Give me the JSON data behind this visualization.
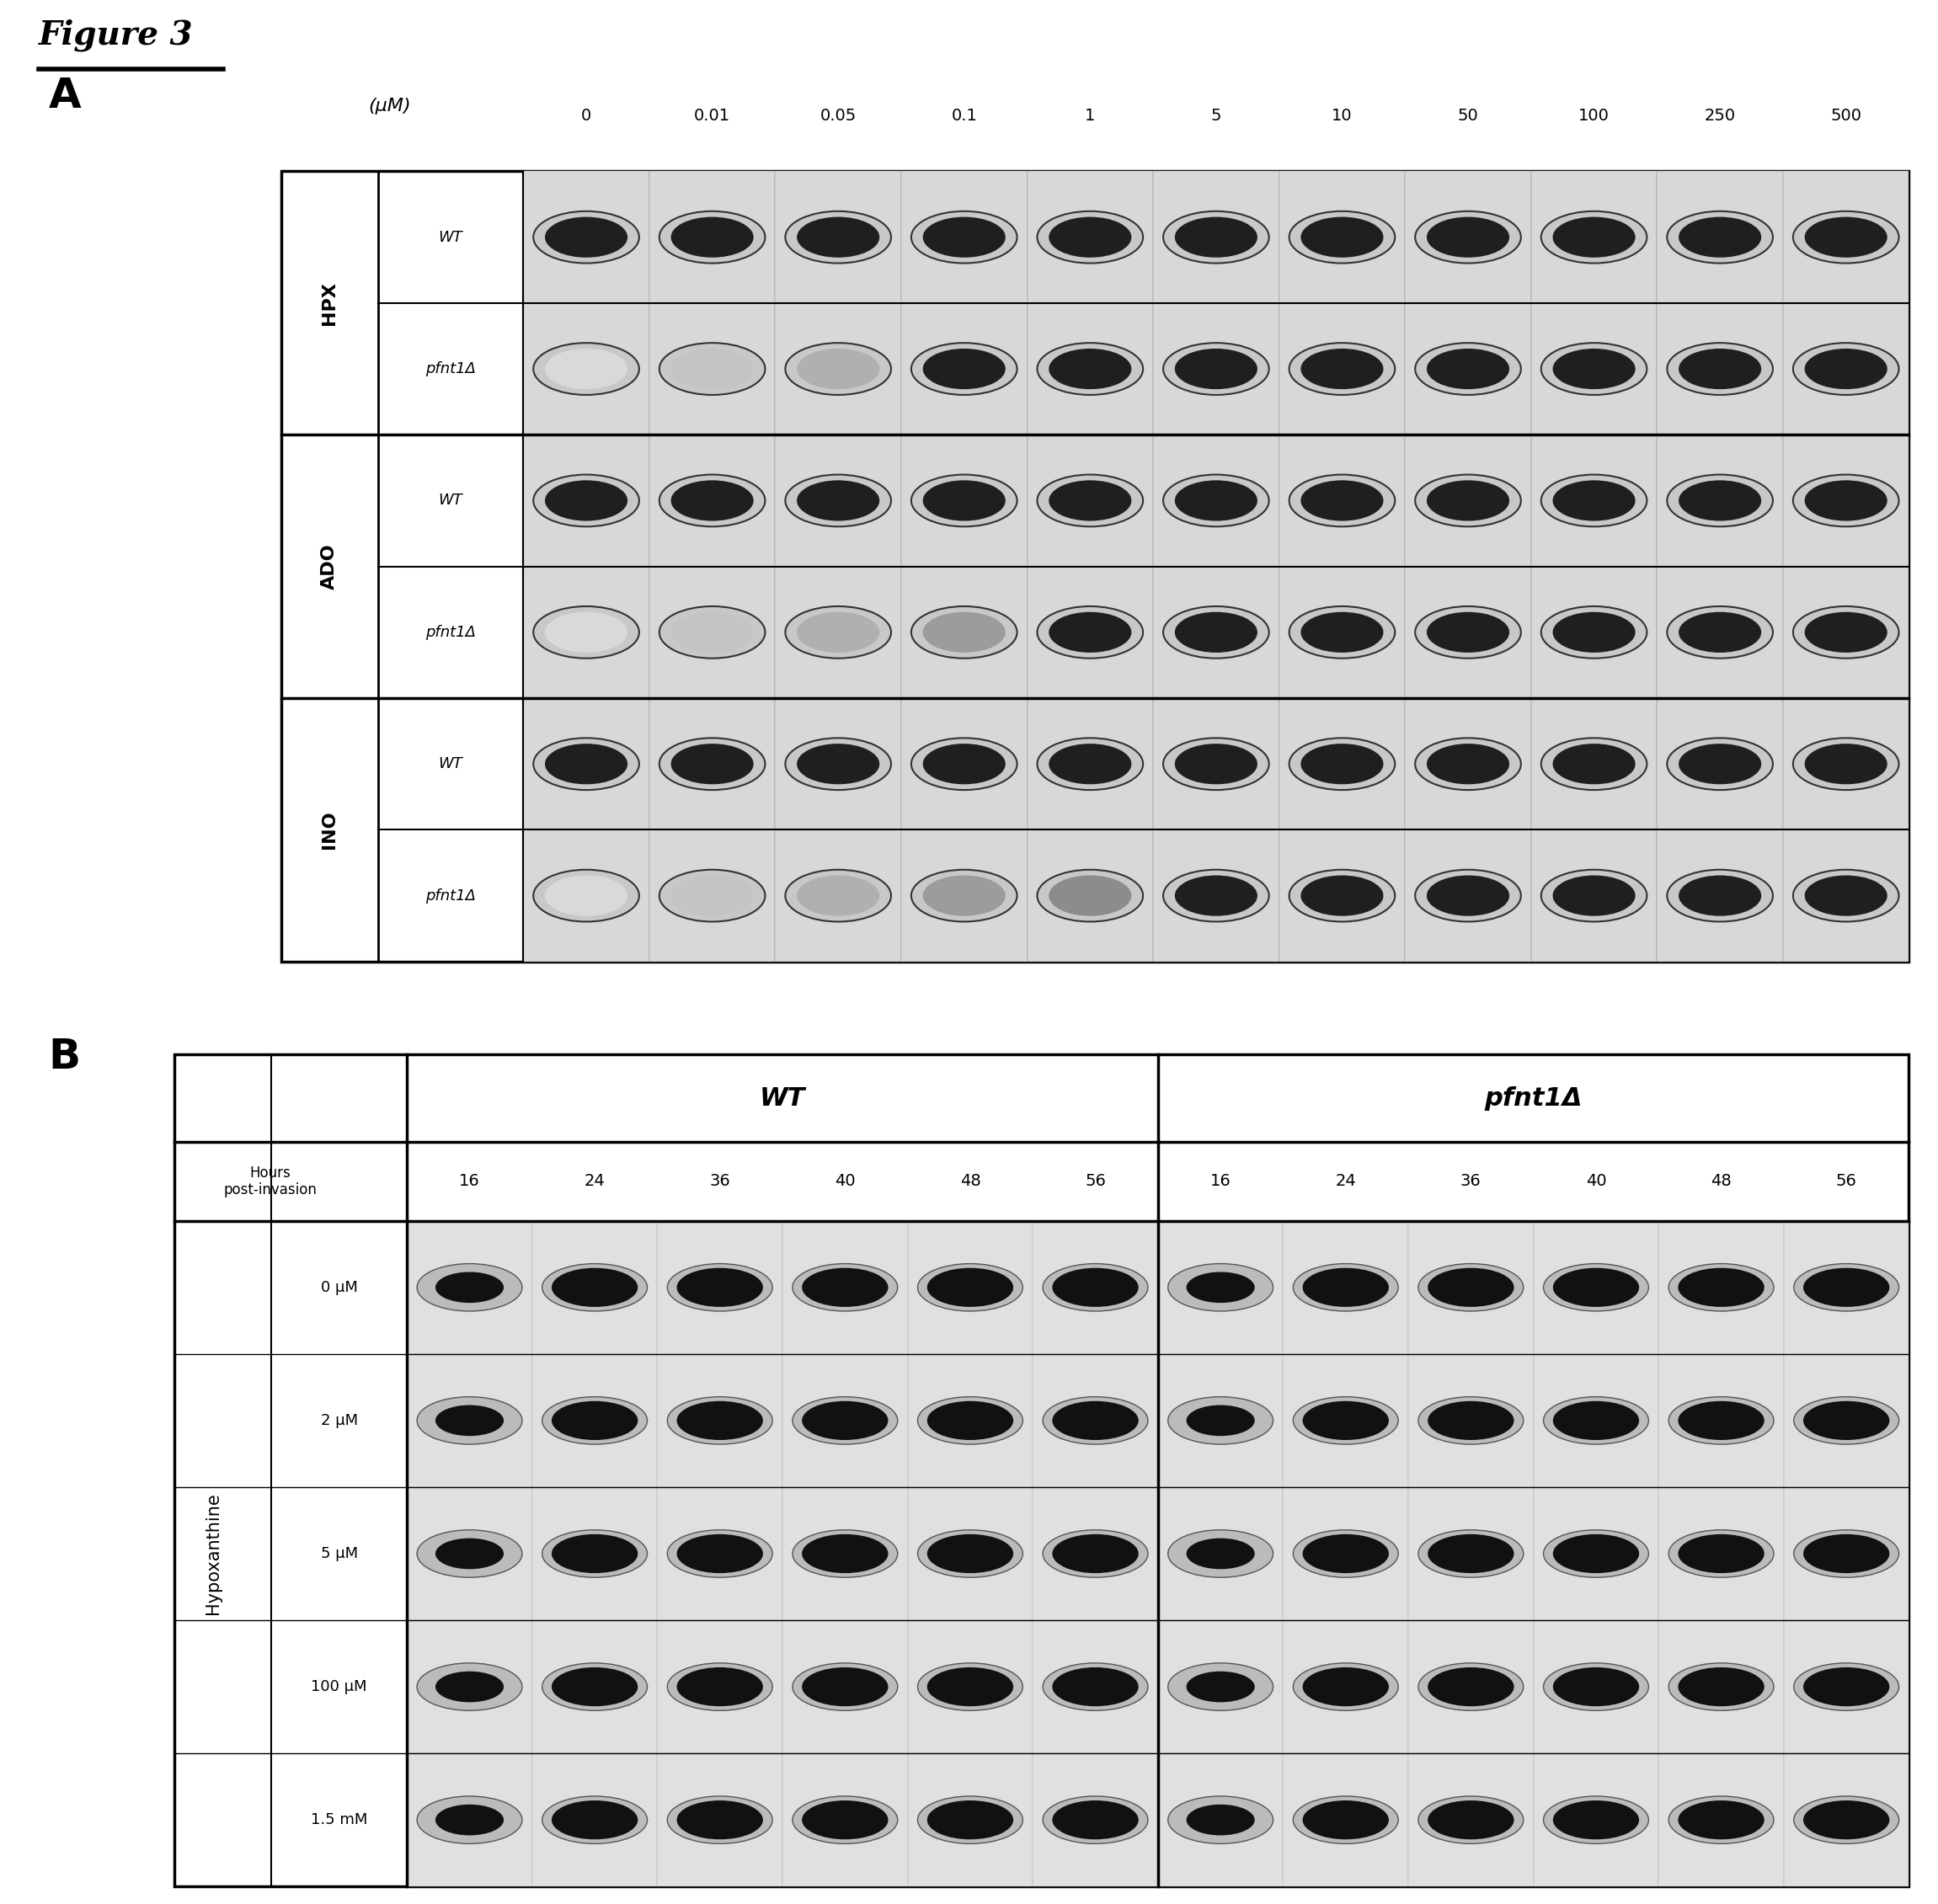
{
  "title": "Figure 3",
  "panel_a_label": "A",
  "panel_b_label": "B",
  "panel_a_uM_header": "(μM)",
  "panel_a_concentrations": [
    "0",
    "0.01",
    "0.05",
    "0.1",
    "1",
    "5",
    "10",
    "50",
    "100",
    "250",
    "500"
  ],
  "panel_a_groups": [
    "HPX",
    "ADO",
    "INO"
  ],
  "panel_a_strains": [
    "WT",
    "pfnt1Δ"
  ],
  "panel_b_wt_header": "WT",
  "panel_b_mut_header": "pfnt1Δ",
  "panel_b_timepoints": [
    "16",
    "24",
    "36",
    "40",
    "48",
    "56"
  ],
  "panel_b_ylabel": "Hypoxanthine",
  "panel_b_hours_label": "Hours\npost-invasion",
  "panel_b_concs": [
    "0 μM",
    "2 μM",
    "5 μM",
    "100 μM",
    "1.5 mM"
  ],
  "bg_color": "#ffffff",
  "cell_bg_a": "#d8d8d8",
  "cell_bg_b": "#e0e0e0"
}
